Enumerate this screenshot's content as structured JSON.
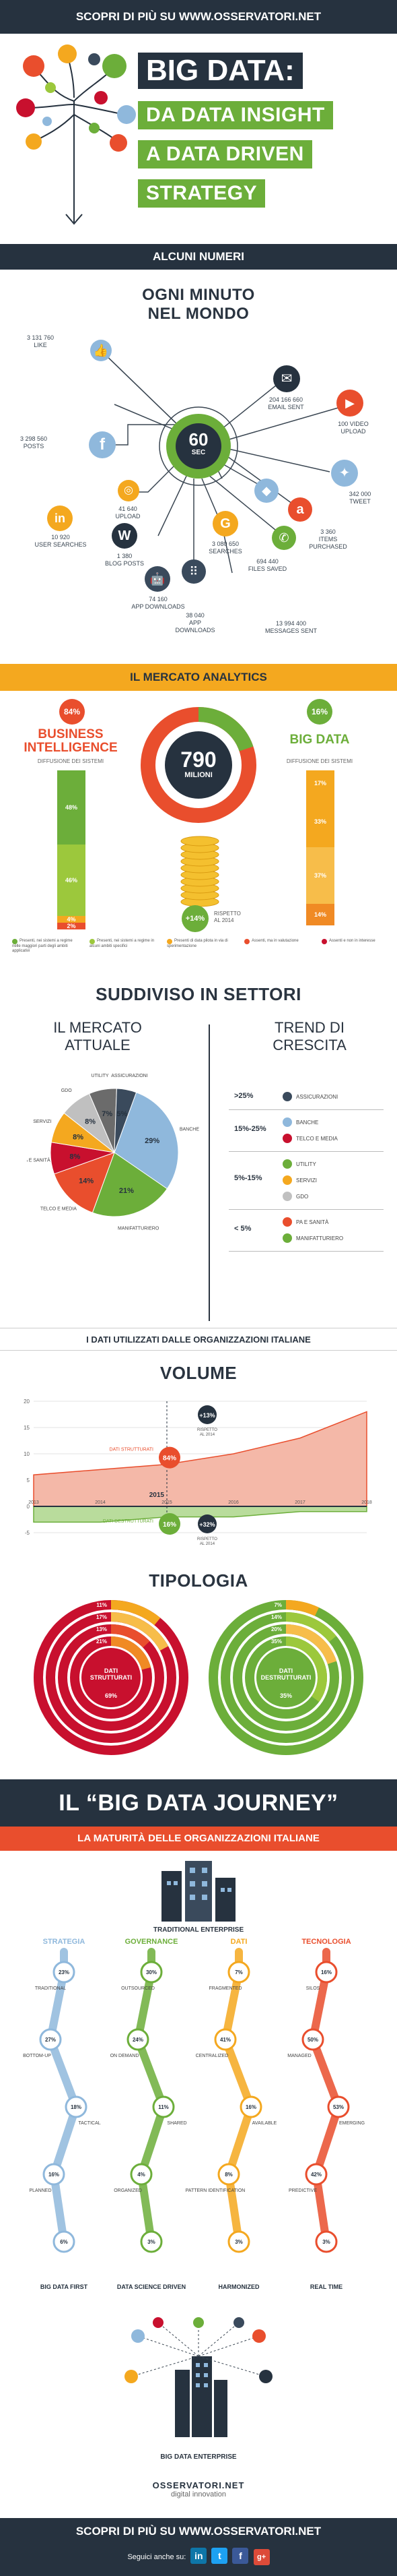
{
  "header": {
    "prefix": "SCOPRI DI PIÙ SU",
    "site": "WWW.OSSERVATORI.NET"
  },
  "hero": {
    "line1": "BIG DATA:",
    "line2": "DA DATA INSIGHT",
    "line3": "A DATA DRIVEN",
    "line4": "STRATEGY"
  },
  "numbers": {
    "bar_title": "ALCUNI NUMERI",
    "title_l1": "OGNI MINUTO",
    "title_l2": "NEL MONDO",
    "hub_value": "60",
    "hub_unit": "SEC",
    "items": [
      {
        "value": "3 131 760",
        "label": "LIKE",
        "icon": "like-icon"
      },
      {
        "value": "3 298 560",
        "label": "POSTS",
        "icon": "facebook-icon"
      },
      {
        "value": "41 640",
        "label": "UPLOAD",
        "icon": "instagram-icon"
      },
      {
        "value": "10 920",
        "label": "USER SEARCHES",
        "icon": "linkedin-icon"
      },
      {
        "value": "1 380",
        "label": "BLOG POSTS",
        "icon": "wordpress-icon"
      },
      {
        "value": "74 160",
        "label": "APP DOWNLOADS",
        "icon": "android-icon"
      },
      {
        "value": "38 040",
        "label": "APP DOWNLOADS",
        "icon": "apple-icon"
      },
      {
        "value": "3 080 650",
        "label": "SEARCHES",
        "icon": "google-icon"
      },
      {
        "value": "694 440",
        "label": "FILES SAVED",
        "icon": "dropbox-icon"
      },
      {
        "value": "13 994 400",
        "label": "MESSAGES SENT",
        "icon": "whatsapp-icon"
      },
      {
        "value": "204 166 660",
        "label": "EMAIL SENT",
        "icon": "email-icon"
      },
      {
        "value": "100 VIDEO",
        "label": "UPLOAD",
        "icon": "youtube-icon"
      },
      {
        "value": "342 000",
        "label": "TWEET",
        "icon": "twitter-icon"
      },
      {
        "value": "3 360",
        "label": "ITEMS PURCHASED",
        "icon": "amazon-icon"
      }
    ]
  },
  "market": {
    "bar_title": "IL MERCATO ANALYTICS",
    "bi_pct": "84%",
    "bi_title_l1": "BUSINESS",
    "bi_title_l2": "INTELLIGENCE",
    "bd_pct": "16%",
    "bd_title": "BIG DATA",
    "diffusion": "DIFFUSIONE DEI SISTEMI",
    "total": "790",
    "total_unit": "MILIONI",
    "growth": "+14%",
    "growth_note_l1": "RISPETTO",
    "growth_note_l2": "AL 2014",
    "bi_segments": [
      {
        "label": "48%",
        "value": 48,
        "color": "#6cae3a"
      },
      {
        "label": "46%",
        "value": 46,
        "color": "#9cc83c"
      },
      {
        "label": "4%",
        "value": 4,
        "color": "#f4a81f"
      },
      {
        "label": "2%",
        "value": 2,
        "color": "#e94e2d"
      }
    ],
    "bd_segments": [
      {
        "label": "17%",
        "value": 17,
        "color": "#f4a81f"
      },
      {
        "label": "33%",
        "value": 33,
        "color": "#f4a81f"
      },
      {
        "label": "37%",
        "value": 37,
        "color": "#f7bd4a"
      },
      {
        "label": "14%",
        "value": 14,
        "color": "#f08a24"
      }
    ],
    "legend": [
      {
        "text": "Presenti, nei sistemi a regime nelle maggiori parti degli ambiti applicativi",
        "color": "#6cae3a"
      },
      {
        "text": "Presenti, nei sistemi a regime in alcuni ambiti specifici",
        "color": "#9cc83c"
      },
      {
        "text": "Presenti di data pilota in via di sperimentazione",
        "color": "#f4a81f"
      },
      {
        "text": "Assenti, ma in valutazione",
        "color": "#e94e2d"
      },
      {
        "text": "Assenti e non in interesse",
        "color": "#c8102e"
      }
    ]
  },
  "sectors": {
    "title": "SUDDIVISO IN SETTORI",
    "left_title_l1": "IL MERCATO",
    "left_title_l2": "ATTUALE",
    "right_title_l1": "TREND DI",
    "right_title_l2": "CRESCITA",
    "chart_data": {
      "type": "pie",
      "categories": [
        "BANCHE",
        "MANIFATTURIERO",
        "TELCO E MEDIA",
        "PA E SANITÀ",
        "SERVIZI",
        "GDO",
        "UTILITY",
        "ASSICURAZIONI"
      ],
      "values": [
        29,
        21,
        14,
        8,
        8,
        8,
        7,
        5
      ],
      "labels": [
        "29%",
        "21%",
        "14%",
        "8%",
        "8%",
        "8%",
        "7%",
        "5%"
      ],
      "colors": [
        "#8fb8dc",
        "#6cae3a",
        "#e94e2d",
        "#c8102e",
        "#f4a81f",
        "#c0c0c0",
        "#6b6b6b",
        "#3a4a5c"
      ]
    },
    "trend": [
      {
        "range": ">25%",
        "items": [
          "ASSICURAZIONI"
        ]
      },
      {
        "range": "15%-25%",
        "items": [
          "BANCHE",
          "TELCO E MEDIA"
        ]
      },
      {
        "range": "5%-15%",
        "items": [
          "UTILITY",
          "SERVIZI",
          "GDO"
        ]
      },
      {
        "range": "< 5%",
        "items": [
          "PA E SANITÀ",
          "MANIFATTURIERO"
        ]
      }
    ]
  },
  "data_used": {
    "bar_title": "I DATI UTILIZZATI DALLE ORGANIZZAZIONI ITALIANE",
    "volume_title": "VOLUME",
    "chart_data": {
      "type": "area",
      "x": [
        "2013",
        "2014",
        "2015",
        "2016",
        "2017",
        "2018"
      ],
      "series": [
        {
          "name": "DATI STRUTTURATI",
          "values": [
            6,
            7,
            8,
            10,
            13,
            18
          ]
        },
        {
          "name": "DATI DESTRUTTURATI",
          "values": [
            -3,
            -3,
            -2,
            -2,
            -1,
            -1
          ]
        }
      ],
      "ylim": [
        -5,
        20
      ],
      "yticks": [
        "20",
        "15",
        "10",
        "5",
        "0",
        "-5"
      ]
    },
    "structured_label": "DATI STRUTTURATI",
    "unstructured_label": "DATI DESTRUTTURATI",
    "structured_pct": "84%",
    "unstructured_pct": "16%",
    "year_marker": "2015",
    "structured_growth": "+13%",
    "unstructured_growth": "+32%",
    "growth_note_l1": "RISPETTO",
    "growth_note_l2": "AL 2014",
    "typology_title": "TIPOLOGIA",
    "structured_center": "DATI STRUTTURATI",
    "unstructured_center": "DATI DESTRUTTURATI",
    "structured_rings": [
      "11%",
      "17%",
      "13%",
      "21%",
      "69%"
    ],
    "unstructured_rings": [
      "7%",
      "14%",
      "20%",
      "35%",
      "35%"
    ]
  },
  "journey": {
    "title": "IL “BIG DATA JOURNEY”",
    "subtitle": "LA MATURITÀ DELLE ORGANIZZAZIONI ITALIANE",
    "top_label": "TRADITIONAL ENTERPRISE",
    "bottom_label": "BIG DATA ENTERPRISE",
    "columns": [
      {
        "name": "STRATEGIA",
        "color": "#8fb8dc",
        "end": "BIG DATA FIRST",
        "steps": [
          {
            "pct": "23%",
            "label": "TRADITIONAL"
          },
          {
            "pct": "27%",
            "label": "BOTTOM-UP"
          },
          {
            "pct": "18%",
            "label": "TACTICAL"
          },
          {
            "pct": "16%",
            "label": "PLANNED"
          },
          {
            "pct": "6%",
            "label": ""
          }
        ]
      },
      {
        "name": "GOVERNANCE",
        "color": "#6cae3a",
        "end": "DATA SCIENCE DRIVEN",
        "steps": [
          {
            "pct": "30%",
            "label": "OUTSOURCED"
          },
          {
            "pct": "24%",
            "label": "ON DEMAND"
          },
          {
            "pct": "11%",
            "label": "SHARED"
          },
          {
            "pct": "4%",
            "label": "ORGANIZED"
          },
          {
            "pct": "3%",
            "label": ""
          }
        ]
      },
      {
        "name": "DATI",
        "color": "#f4a81f",
        "end": "HARMONIZED",
        "steps": [
          {
            "pct": "7%",
            "label": "FRAGMENTED"
          },
          {
            "pct": "41%",
            "label": "CENTRALIZED"
          },
          {
            "pct": "16%",
            "label": "AVAILABLE"
          },
          {
            "pct": "8%",
            "label": "PATTERN IDENTIFICATION"
          },
          {
            "pct": "3%",
            "label": ""
          }
        ]
      },
      {
        "name": "TECNOLOGIA",
        "color": "#e94e2d",
        "end": "REAL TIME",
        "steps": [
          {
            "pct": "16%",
            "label": "SILOS"
          },
          {
            "pct": "50%",
            "label": "MANAGED"
          },
          {
            "pct": "53%",
            "label": "EMERGING"
          },
          {
            "pct": "42%",
            "label": "PREDICTIVE"
          },
          {
            "pct": "3%",
            "label": ""
          }
        ]
      }
    ]
  },
  "footer": {
    "prefix": "SCOPRI DI PIÙ SU",
    "site": "WWW.OSSERVATORI.NET",
    "brand_l1": "OSSERVATORI.NET",
    "brand_l2": "digital innovation",
    "follow": "Seguici anche su:",
    "social": [
      "in",
      "t",
      "f",
      "g+"
    ]
  }
}
